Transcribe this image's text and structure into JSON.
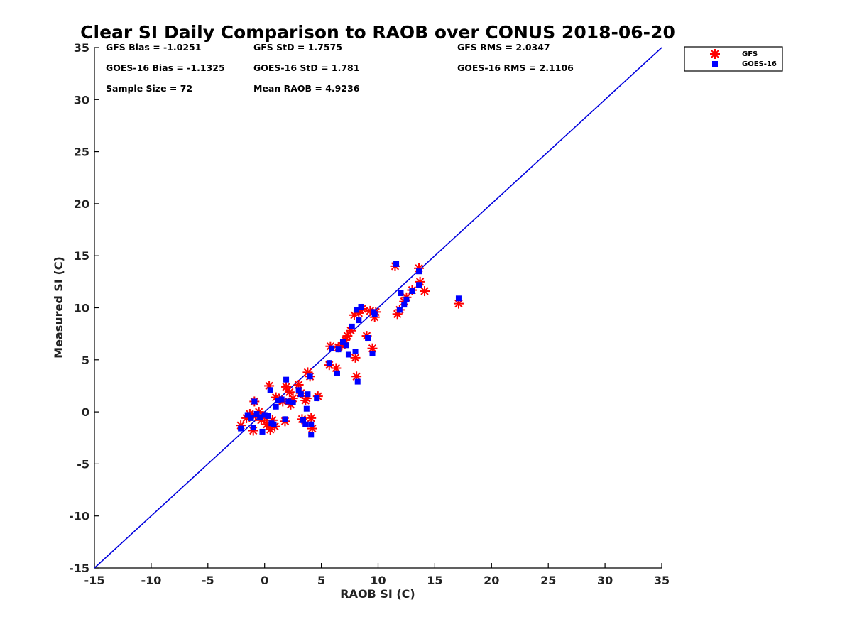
{
  "chart_data": {
    "type": "scatter",
    "title": "Clear SI Daily Comparison to RAOB over CONUS 2018-06-20",
    "xlabel": "RAOB SI (C)",
    "ylabel": "Measured SI (C)",
    "xlim": [
      -15,
      35
    ],
    "ylim": [
      -15,
      35
    ],
    "xticks": [
      "-15",
      "-10",
      "-5",
      "0",
      "5",
      "10",
      "15",
      "20",
      "25",
      "30",
      "35"
    ],
    "yticks": [
      "-15",
      "-10",
      "-5",
      "0",
      "5",
      "10",
      "15",
      "20",
      "25",
      "30",
      "35"
    ],
    "reference_line": {
      "from": [
        -15,
        -15
      ],
      "to": [
        35,
        35
      ],
      "color": "#0000dd"
    },
    "legend_position": "outside-top-right",
    "stats": [
      "GFS Bias = -1.0251",
      "GFS StD = 1.7575",
      "GFS RMS = 2.0347",
      "GOES-16 Bias = -1.1325",
      "GOES-16 StD = 1.781",
      "GOES-16 RMS = 2.1106",
      "Sample Size = 72",
      "Mean RAOB = 4.9236"
    ],
    "series": [
      {
        "name": "GFS",
        "marker": "asterisk",
        "color": "#ff0000",
        "points": [
          [
            -2.1,
            -1.3
          ],
          [
            -1.6,
            -0.6
          ],
          [
            -1.3,
            -0.2
          ],
          [
            -1.0,
            -1.8
          ],
          [
            -0.9,
            1.0
          ],
          [
            -0.8,
            -0.4
          ],
          [
            -0.5,
            0.0
          ],
          [
            -0.3,
            -0.8
          ],
          [
            0.0,
            -0.5
          ],
          [
            0.2,
            -1.2
          ],
          [
            0.4,
            2.5
          ],
          [
            0.5,
            -1.7
          ],
          [
            0.7,
            -0.8
          ],
          [
            0.9,
            -1.4
          ],
          [
            1.0,
            1.4
          ],
          [
            1.3,
            1.2
          ],
          [
            1.6,
            1.0
          ],
          [
            1.8,
            -0.9
          ],
          [
            1.9,
            2.4
          ],
          [
            2.2,
            1.9
          ],
          [
            2.5,
            1.3
          ],
          [
            2.3,
            0.7
          ],
          [
            3.0,
            2.6
          ],
          [
            3.2,
            1.8
          ],
          [
            3.3,
            -0.7
          ],
          [
            3.6,
            1.1
          ],
          [
            3.7,
            1.3
          ],
          [
            3.8,
            3.8
          ],
          [
            4.0,
            3.4
          ],
          [
            4.1,
            -0.6
          ],
          [
            4.2,
            -1.6
          ],
          [
            4.7,
            1.5
          ],
          [
            5.7,
            4.5
          ],
          [
            5.8,
            6.3
          ],
          [
            6.3,
            4.2
          ],
          [
            6.5,
            6.2
          ],
          [
            6.8,
            6.4
          ],
          [
            7.1,
            6.9
          ],
          [
            7.3,
            7.3
          ],
          [
            7.6,
            7.8
          ],
          [
            7.9,
            9.3
          ],
          [
            8.0,
            5.2
          ],
          [
            8.1,
            3.4
          ],
          [
            8.3,
            9.5
          ],
          [
            8.6,
            9.9
          ],
          [
            9.0,
            7.3
          ],
          [
            9.3,
            9.7
          ],
          [
            9.5,
            6.1
          ],
          [
            9.7,
            9.1
          ],
          [
            9.8,
            9.6
          ],
          [
            11.5,
            14.0
          ],
          [
            11.7,
            9.4
          ],
          [
            11.9,
            9.8
          ],
          [
            12.3,
            10.6
          ],
          [
            12.5,
            11.0
          ],
          [
            13.0,
            11.7
          ],
          [
            13.6,
            13.8
          ],
          [
            13.7,
            12.5
          ],
          [
            14.1,
            11.6
          ],
          [
            17.1,
            10.4
          ]
        ]
      },
      {
        "name": "GOES-16",
        "marker": "square",
        "color": "#0000ff",
        "points": [
          [
            -2.1,
            -1.6
          ],
          [
            -1.5,
            -0.3
          ],
          [
            -1.2,
            -0.6
          ],
          [
            -1.0,
            -1.5
          ],
          [
            -0.9,
            1.0
          ],
          [
            -0.7,
            -0.2
          ],
          [
            -0.4,
            -0.5
          ],
          [
            -0.2,
            -1.9
          ],
          [
            0.0,
            -0.3
          ],
          [
            0.3,
            -0.4
          ],
          [
            0.5,
            2.1
          ],
          [
            0.6,
            -1.1
          ],
          [
            0.8,
            -1.2
          ],
          [
            1.0,
            0.5
          ],
          [
            1.2,
            1.1
          ],
          [
            1.5,
            1.2
          ],
          [
            1.8,
            -0.7
          ],
          [
            1.9,
            3.1
          ],
          [
            2.1,
            1.0
          ],
          [
            2.5,
            0.9
          ],
          [
            3.0,
            2.1
          ],
          [
            3.2,
            1.7
          ],
          [
            3.4,
            -0.8
          ],
          [
            3.6,
            -1.2
          ],
          [
            3.7,
            0.3
          ],
          [
            3.8,
            1.7
          ],
          [
            4.0,
            3.4
          ],
          [
            4.1,
            -1.2
          ],
          [
            4.1,
            -2.2
          ],
          [
            4.6,
            1.3
          ],
          [
            5.7,
            4.7
          ],
          [
            5.9,
            6.1
          ],
          [
            6.4,
            3.7
          ],
          [
            6.5,
            6.0
          ],
          [
            6.9,
            6.7
          ],
          [
            7.2,
            6.4
          ],
          [
            7.4,
            5.5
          ],
          [
            7.7,
            8.2
          ],
          [
            8.0,
            5.8
          ],
          [
            8.1,
            9.8
          ],
          [
            8.2,
            2.9
          ],
          [
            8.3,
            8.8
          ],
          [
            8.5,
            10.1
          ],
          [
            9.1,
            7.1
          ],
          [
            9.5,
            5.6
          ],
          [
            9.6,
            9.6
          ],
          [
            9.7,
            9.4
          ],
          [
            11.6,
            14.2
          ],
          [
            11.9,
            9.8
          ],
          [
            12.0,
            11.4
          ],
          [
            12.3,
            10.3
          ],
          [
            12.5,
            10.8
          ],
          [
            13.0,
            11.6
          ],
          [
            13.6,
            13.5
          ],
          [
            13.6,
            12.2
          ],
          [
            17.1,
            10.9
          ]
        ]
      }
    ]
  }
}
